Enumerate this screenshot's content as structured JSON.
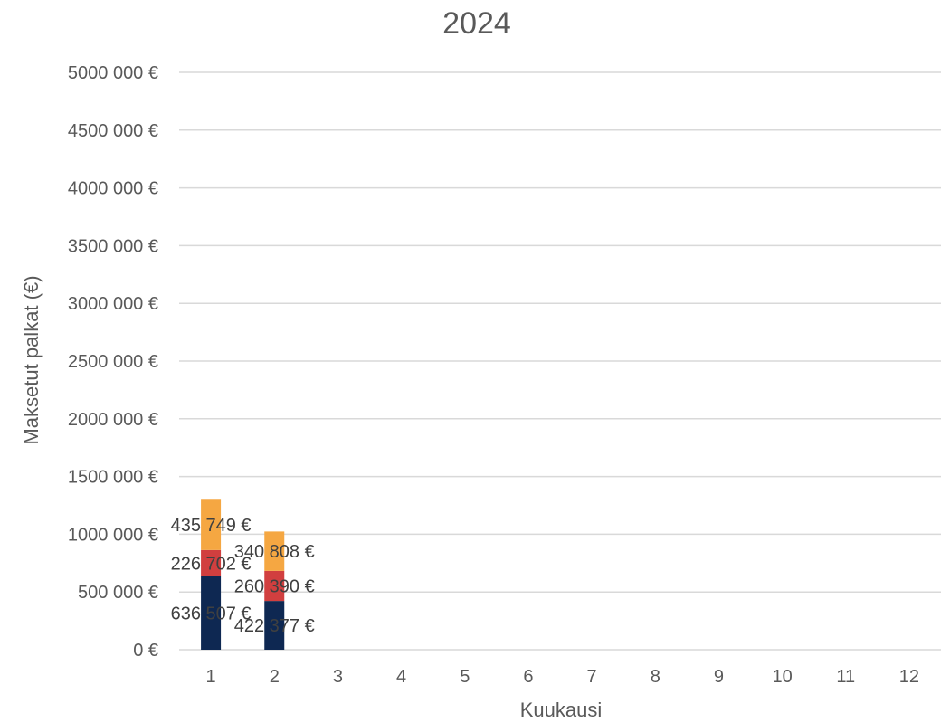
{
  "chart_data": {
    "type": "bar",
    "stacked": true,
    "title": "2024",
    "xlabel": "Kuukausi",
    "ylabel": "Maksetut palkat (€)",
    "categories": [
      "1",
      "2",
      "3",
      "4",
      "5",
      "6",
      "7",
      "8",
      "9",
      "10",
      "11",
      "12"
    ],
    "series": [
      {
        "values": [
          636507,
          422377,
          null,
          null,
          null,
          null,
          null,
          null,
          null,
          null,
          null,
          null
        ],
        "labels": [
          "636 507 €",
          "422 377 €"
        ],
        "color": "#0e2852"
      },
      {
        "values": [
          226702,
          260390,
          null,
          null,
          null,
          null,
          null,
          null,
          null,
          null,
          null,
          null
        ],
        "labels": [
          "226 702 €",
          "260 390 €"
        ],
        "color": "#d13f3f"
      },
      {
        "values": [
          435749,
          340808,
          null,
          null,
          null,
          null,
          null,
          null,
          null,
          null,
          null,
          null
        ],
        "labels": [
          "435 749 €",
          "340 808 €"
        ],
        "color": "#f5a742"
      }
    ],
    "ylim": [
      0,
      5000000
    ],
    "yticks": [
      "0 €",
      "500 000 €",
      "1000 000 €",
      "1500 000 €",
      "2000 000 €",
      "2500 000 €",
      "3000 000 €",
      "3500 000 €",
      "4000 000 €",
      "4500 000 €",
      "5000 000 €"
    ],
    "grid": true,
    "legend": "none"
  }
}
